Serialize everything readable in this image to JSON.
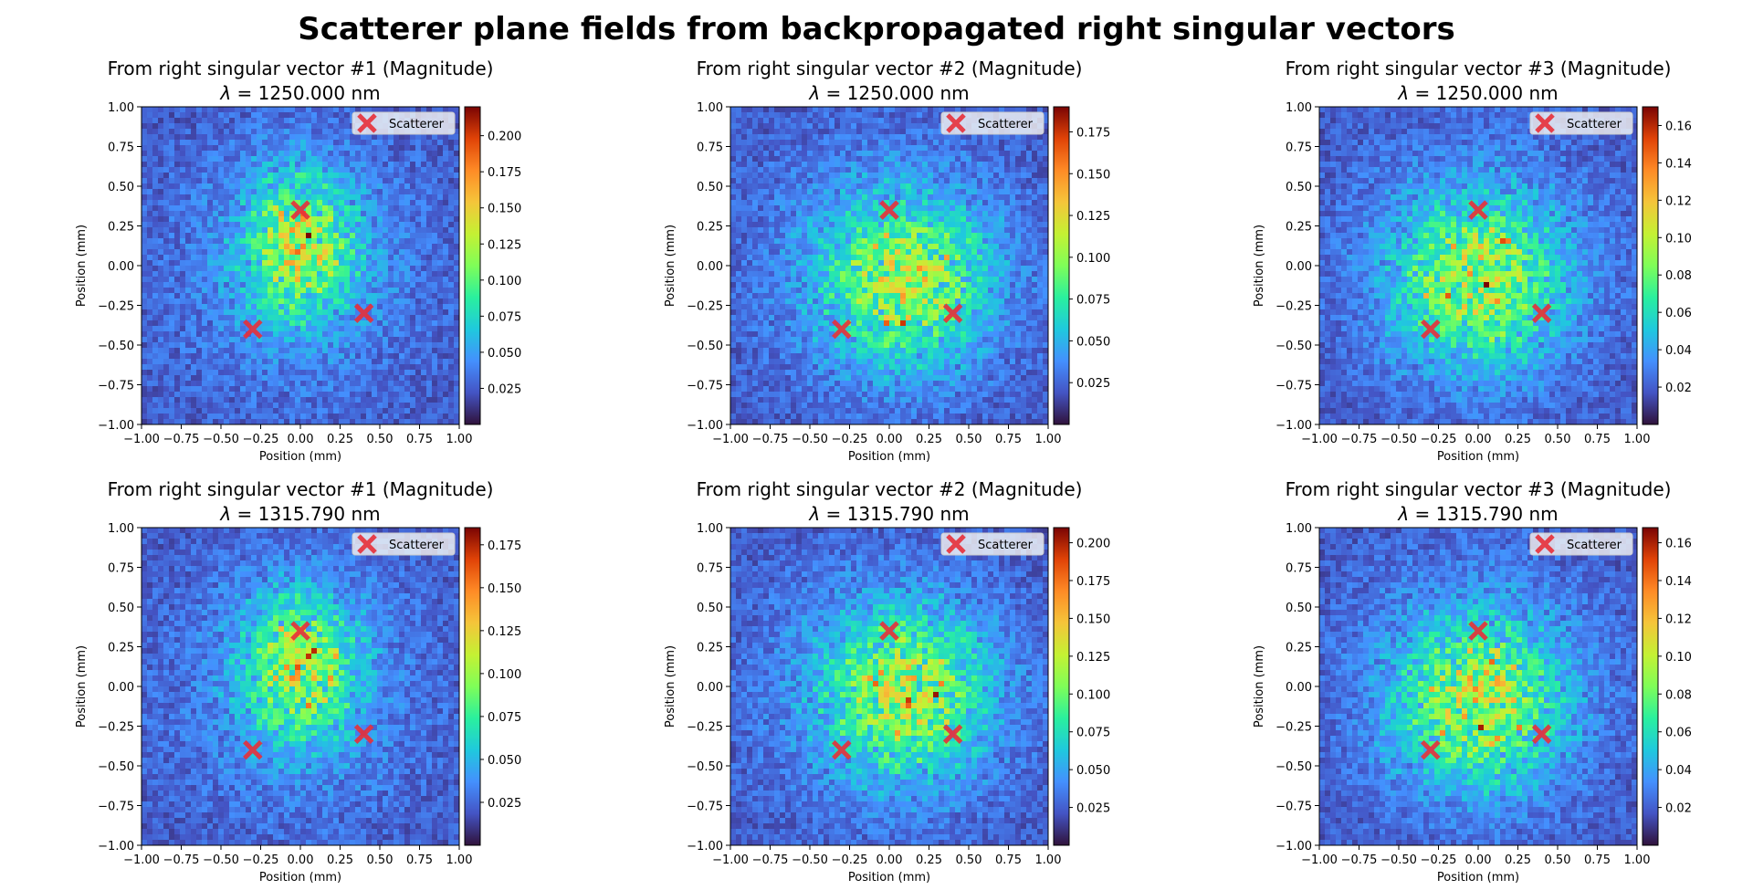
{
  "suptitle": "Scatterer plane fields from backpropagated right singular vectors",
  "chart_data": [
    {
      "type": "heatmap",
      "title": "From right singular vector #1 (Magnitude)",
      "subtitle_prefix": "λ",
      "subtitle_value": " = 1250.000 nm",
      "xlabel": "Position (mm)",
      "ylabel": "Position (mm)",
      "xlim": [
        -1,
        1
      ],
      "ylim": [
        -1,
        1
      ],
      "xticks": [
        "−1.00",
        "−0.75",
        "−0.50",
        "−0.25",
        "0.00",
        "0.25",
        "0.50",
        "0.75",
        "1.00"
      ],
      "yticks": [
        "−1.00",
        "−0.75",
        "−0.50",
        "−0.25",
        "0.00",
        "0.25",
        "0.50",
        "0.75",
        "1.00"
      ],
      "colormap": "turbo",
      "colorbar_range": [
        0.0,
        0.22
      ],
      "colorbar_ticks": [
        "0.025",
        "0.050",
        "0.075",
        "0.100",
        "0.125",
        "0.150",
        "0.175",
        "0.200"
      ],
      "hotspot": {
        "x": 0.0,
        "y": 0.12,
        "spread_x": 0.24,
        "spread_y": 0.32
      },
      "scatterers": [
        {
          "x": 0.0,
          "y": 0.35
        },
        {
          "x": -0.3,
          "y": -0.4
        },
        {
          "x": 0.4,
          "y": -0.3
        }
      ],
      "legend": [
        "Scatterer"
      ],
      "legend_loc": "upper right"
    },
    {
      "type": "heatmap",
      "title": "From right singular vector #2 (Magnitude)",
      "subtitle_prefix": "λ",
      "subtitle_value": " = 1250.000 nm",
      "xlabel": "Position (mm)",
      "ylabel": "Position (mm)",
      "xlim": [
        -1,
        1
      ],
      "ylim": [
        -1,
        1
      ],
      "xticks": [
        "−1.00",
        "−0.75",
        "−0.50",
        "−0.25",
        "0.00",
        "0.25",
        "0.50",
        "0.75",
        "1.00"
      ],
      "yticks": [
        "−1.00",
        "−0.75",
        "−0.50",
        "−0.25",
        "0.00",
        "0.25",
        "0.50",
        "0.75",
        "1.00"
      ],
      "colormap": "turbo",
      "colorbar_range": [
        0.0,
        0.19
      ],
      "colorbar_ticks": [
        "0.025",
        "0.050",
        "0.075",
        "0.100",
        "0.125",
        "0.150",
        "0.175"
      ],
      "hotspot": {
        "x": 0.1,
        "y": -0.1,
        "spread_x": 0.35,
        "spread_y": 0.35
      },
      "scatterers": [
        {
          "x": 0.0,
          "y": 0.35
        },
        {
          "x": -0.3,
          "y": -0.4
        },
        {
          "x": 0.4,
          "y": -0.3
        }
      ],
      "legend": [
        "Scatterer"
      ],
      "legend_loc": "upper right"
    },
    {
      "type": "heatmap",
      "title": "From right singular vector #3 (Magnitude)",
      "subtitle_prefix": "λ",
      "subtitle_value": " = 1250.000 nm",
      "xlabel": "Position (mm)",
      "ylabel": "Position (mm)",
      "xlim": [
        -1,
        1
      ],
      "ylim": [
        -1,
        1
      ],
      "xticks": [
        "−1.00",
        "−0.75",
        "−0.50",
        "−0.25",
        "0.00",
        "0.25",
        "0.50",
        "0.75",
        "1.00"
      ],
      "yticks": [
        "−1.00",
        "−0.75",
        "−0.50",
        "−0.25",
        "0.00",
        "0.25",
        "0.50",
        "0.75",
        "1.00"
      ],
      "colormap": "turbo",
      "colorbar_range": [
        0.0,
        0.17
      ],
      "colorbar_ticks": [
        "0.02",
        "0.04",
        "0.06",
        "0.08",
        "0.10",
        "0.12",
        "0.14",
        "0.16"
      ],
      "hotspot": {
        "x": 0.0,
        "y": -0.1,
        "spread_x": 0.35,
        "spread_y": 0.35
      },
      "scatterers": [
        {
          "x": 0.0,
          "y": 0.35
        },
        {
          "x": -0.3,
          "y": -0.4
        },
        {
          "x": 0.4,
          "y": -0.3
        }
      ],
      "legend": [
        "Scatterer"
      ],
      "legend_loc": "upper right"
    },
    {
      "type": "heatmap",
      "title": "From right singular vector #1 (Magnitude)",
      "subtitle_prefix": "λ",
      "subtitle_value": " = 1315.790 nm",
      "xlabel": "Position (mm)",
      "ylabel": "Position (mm)",
      "xlim": [
        -1,
        1
      ],
      "ylim": [
        -1,
        1
      ],
      "xticks": [
        "−1.00",
        "−0.75",
        "−0.50",
        "−0.25",
        "0.00",
        "0.25",
        "0.50",
        "0.75",
        "1.00"
      ],
      "yticks": [
        "−1.00",
        "−0.75",
        "−0.50",
        "−0.25",
        "0.00",
        "0.25",
        "0.50",
        "0.75",
        "1.00"
      ],
      "colormap": "turbo",
      "colorbar_range": [
        0.0,
        0.185
      ],
      "colorbar_ticks": [
        "0.025",
        "0.050",
        "0.075",
        "0.100",
        "0.125",
        "0.150",
        "0.175"
      ],
      "hotspot": {
        "x": 0.0,
        "y": 0.12,
        "spread_x": 0.24,
        "spread_y": 0.32
      },
      "scatterers": [
        {
          "x": 0.0,
          "y": 0.35
        },
        {
          "x": -0.3,
          "y": -0.4
        },
        {
          "x": 0.4,
          "y": -0.3
        }
      ],
      "legend": [
        "Scatterer"
      ],
      "legend_loc": "upper right"
    },
    {
      "type": "heatmap",
      "title": "From right singular vector #2 (Magnitude)",
      "subtitle_prefix": "λ",
      "subtitle_value": " = 1315.790 nm",
      "xlabel": "Position (mm)",
      "ylabel": "Position (mm)",
      "xlim": [
        -1,
        1
      ],
      "ylim": [
        -1,
        1
      ],
      "xticks": [
        "−1.00",
        "−0.75",
        "−0.50",
        "−0.25",
        "0.00",
        "0.25",
        "0.50",
        "0.75",
        "1.00"
      ],
      "yticks": [
        "−1.00",
        "−0.75",
        "−0.50",
        "−0.25",
        "0.00",
        "0.25",
        "0.50",
        "0.75",
        "1.00"
      ],
      "colormap": "turbo",
      "colorbar_range": [
        0.0,
        0.21
      ],
      "colorbar_ticks": [
        "0.025",
        "0.050",
        "0.075",
        "0.100",
        "0.125",
        "0.150",
        "0.175",
        "0.200"
      ],
      "hotspot": {
        "x": 0.1,
        "y": -0.05,
        "spread_x": 0.35,
        "spread_y": 0.35
      },
      "scatterers": [
        {
          "x": 0.0,
          "y": 0.35
        },
        {
          "x": -0.3,
          "y": -0.4
        },
        {
          "x": 0.4,
          "y": -0.3
        }
      ],
      "legend": [
        "Scatterer"
      ],
      "legend_loc": "upper right"
    },
    {
      "type": "heatmap",
      "title": "From right singular vector #3 (Magnitude)",
      "subtitle_prefix": "λ",
      "subtitle_value": " = 1315.790 nm",
      "xlabel": "Position (mm)",
      "ylabel": "Position (mm)",
      "xlim": [
        -1,
        1
      ],
      "ylim": [
        -1,
        1
      ],
      "xticks": [
        "−1.00",
        "−0.75",
        "−0.50",
        "−0.25",
        "0.00",
        "0.25",
        "0.50",
        "0.75",
        "1.00"
      ],
      "yticks": [
        "−1.00",
        "−0.75",
        "−0.50",
        "−0.25",
        "0.00",
        "0.25",
        "0.50",
        "0.75",
        "1.00"
      ],
      "colormap": "turbo",
      "colorbar_range": [
        0.0,
        0.168
      ],
      "colorbar_ticks": [
        "0.02",
        "0.04",
        "0.06",
        "0.08",
        "0.10",
        "0.12",
        "0.14",
        "0.16"
      ],
      "hotspot": {
        "x": 0.0,
        "y": -0.1,
        "spread_x": 0.35,
        "spread_y": 0.35
      },
      "scatterers": [
        {
          "x": 0.0,
          "y": 0.35
        },
        {
          "x": -0.3,
          "y": -0.4
        },
        {
          "x": 0.4,
          "y": -0.3
        }
      ],
      "legend": [
        "Scatterer"
      ],
      "legend_loc": "upper right"
    }
  ],
  "colors": {
    "background_dark": "#30123b",
    "marker": "#e8303a",
    "text": "#000000"
  }
}
